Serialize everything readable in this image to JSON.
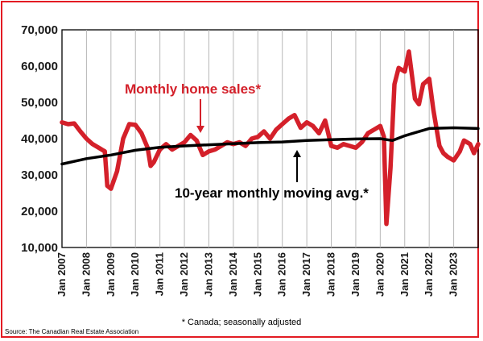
{
  "chart_data": {
    "type": "line",
    "ylim": [
      10000,
      70000
    ],
    "y_ticks": [
      "70,000",
      "60,000",
      "50,000",
      "40,000",
      "30,000",
      "20,000",
      "10,000"
    ],
    "y_tick_values": [
      70000,
      60000,
      50000,
      40000,
      30000,
      20000,
      10000
    ],
    "x_tick_labels": [
      "Jan 2007",
      "Jan 2008",
      "Jan 2009",
      "Jan 2010",
      "Jan 2011",
      "Jan 2012",
      "Jan 2013",
      "Jan 2014",
      "Jan 2015",
      "Jan 2016",
      "Jan 2017",
      "Jan 2018",
      "Jan 2019",
      "Jan 2020",
      "Jan 2021",
      "Jan 2022",
      "Jan 2023"
    ],
    "x_range": [
      2007.0,
      2024.0
    ],
    "grid": "vertical",
    "series": [
      {
        "name": "Monthly home sales*",
        "color": "#d4202a",
        "points": [
          [
            2007.0,
            44500
          ],
          [
            2007.25,
            44000
          ],
          [
            2007.5,
            44200
          ],
          [
            2007.75,
            42000
          ],
          [
            2008.0,
            40000
          ],
          [
            2008.25,
            38500
          ],
          [
            2008.5,
            37500
          ],
          [
            2008.75,
            36500
          ],
          [
            2008.85,
            27000
          ],
          [
            2009.0,
            26200
          ],
          [
            2009.25,
            31000
          ],
          [
            2009.5,
            40000
          ],
          [
            2009.75,
            44000
          ],
          [
            2010.0,
            43800
          ],
          [
            2010.25,
            41500
          ],
          [
            2010.5,
            37500
          ],
          [
            2010.62,
            32500
          ],
          [
            2010.75,
            33500
          ],
          [
            2011.0,
            37000
          ],
          [
            2011.25,
            38500
          ],
          [
            2011.5,
            37000
          ],
          [
            2011.75,
            38000
          ],
          [
            2012.0,
            39000
          ],
          [
            2012.25,
            41000
          ],
          [
            2012.5,
            39500
          ],
          [
            2012.75,
            35500
          ],
          [
            2013.0,
            36500
          ],
          [
            2013.25,
            37000
          ],
          [
            2013.5,
            38000
          ],
          [
            2013.75,
            39000
          ],
          [
            2014.0,
            38500
          ],
          [
            2014.25,
            39000
          ],
          [
            2014.5,
            38000
          ],
          [
            2014.75,
            40000
          ],
          [
            2015.0,
            40500
          ],
          [
            2015.25,
            42000
          ],
          [
            2015.5,
            40000
          ],
          [
            2015.75,
            42500
          ],
          [
            2016.0,
            44000
          ],
          [
            2016.25,
            45500
          ],
          [
            2016.5,
            46500
          ],
          [
            2016.75,
            43000
          ],
          [
            2017.0,
            44500
          ],
          [
            2017.25,
            43500
          ],
          [
            2017.5,
            41500
          ],
          [
            2017.75,
            45000
          ],
          [
            2018.0,
            38000
          ],
          [
            2018.25,
            37500
          ],
          [
            2018.5,
            38500
          ],
          [
            2018.75,
            38000
          ],
          [
            2019.0,
            37500
          ],
          [
            2019.25,
            39000
          ],
          [
            2019.5,
            41500
          ],
          [
            2019.75,
            42500
          ],
          [
            2020.0,
            43500
          ],
          [
            2020.15,
            40500
          ],
          [
            2020.25,
            16500
          ],
          [
            2020.42,
            32000
          ],
          [
            2020.58,
            55000
          ],
          [
            2020.75,
            59500
          ],
          [
            2021.0,
            58500
          ],
          [
            2021.17,
            64000
          ],
          [
            2021.42,
            51000
          ],
          [
            2021.58,
            49500
          ],
          [
            2021.75,
            55000
          ],
          [
            2022.0,
            56500
          ],
          [
            2022.17,
            48000
          ],
          [
            2022.42,
            38000
          ],
          [
            2022.58,
            36000
          ],
          [
            2022.75,
            35000
          ],
          [
            2023.0,
            34000
          ],
          [
            2023.25,
            36500
          ],
          [
            2023.42,
            39500
          ],
          [
            2023.67,
            38500
          ],
          [
            2023.83,
            36000
          ],
          [
            2024.0,
            38500
          ]
        ]
      },
      {
        "name": "10-year monthly moving avg.*",
        "color": "#000000",
        "points": [
          [
            2007.0,
            33000
          ],
          [
            2008.0,
            34500
          ],
          [
            2009.0,
            35500
          ],
          [
            2010.0,
            36800
          ],
          [
            2011.0,
            37600
          ],
          [
            2012.0,
            38000
          ],
          [
            2013.0,
            38300
          ],
          [
            2014.0,
            38600
          ],
          [
            2015.0,
            38900
          ],
          [
            2016.0,
            39100
          ],
          [
            2017.0,
            39500
          ],
          [
            2018.0,
            39700
          ],
          [
            2019.0,
            39900
          ],
          [
            2020.0,
            40000
          ],
          [
            2020.5,
            39500
          ],
          [
            2021.0,
            40800
          ],
          [
            2022.0,
            42800
          ],
          [
            2023.0,
            43000
          ],
          [
            2024.0,
            42800
          ]
        ]
      }
    ],
    "annotations": {
      "monthly_label": "Monthly home sales*",
      "avg_label": "10-year monthly moving avg.*"
    }
  },
  "footnote": "* Canada; seasonally adjusted",
  "source": "Source: The Canadian Real Estate Association",
  "colors": {
    "border": "#e31b23",
    "sales": "#d4202a",
    "average": "#000000",
    "grid": "#b8b8b8"
  }
}
